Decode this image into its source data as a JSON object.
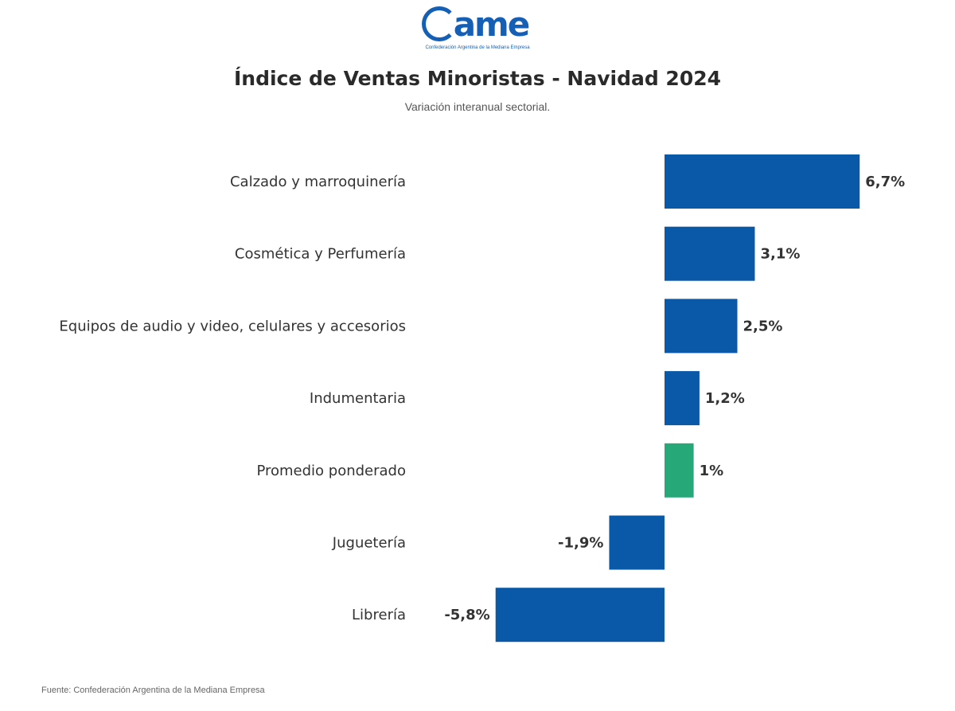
{
  "logo": {
    "text": "ame",
    "subtitle": "Confederación Argentina de la Mediana Empresa"
  },
  "chart_data": {
    "type": "bar",
    "orientation": "horizontal",
    "title": "Índice de Ventas Minoristas - Navidad 2024",
    "subtitle": "Variación interanual sectorial.",
    "xlabel": "",
    "ylabel": "",
    "unit": "%",
    "grid": false,
    "legend": "none",
    "xlim": [
      -5.8,
      6.7
    ],
    "categories": [
      "Calzado y marroquinería",
      "Cosmética y Perfumería",
      "Equipos de audio y video, celulares y accesorios",
      "Indumentaria",
      "Promedio ponderado",
      "Juguetería",
      "Librería"
    ],
    "values": [
      6.7,
      3.1,
      2.5,
      1.2,
      1.0,
      -1.9,
      -5.8
    ],
    "labels": [
      "6,7%",
      "3,1%",
      "2,5%",
      "1,2%",
      "1%",
      "-1,9%",
      "-5,8%"
    ],
    "colors": [
      "#0a58a8",
      "#0a58a8",
      "#0a58a8",
      "#0a58a8",
      "#26a878",
      "#0a58a8",
      "#0a58a8"
    ],
    "source": "Fuente: Confederación Argentina de la Mediana Empresa"
  }
}
